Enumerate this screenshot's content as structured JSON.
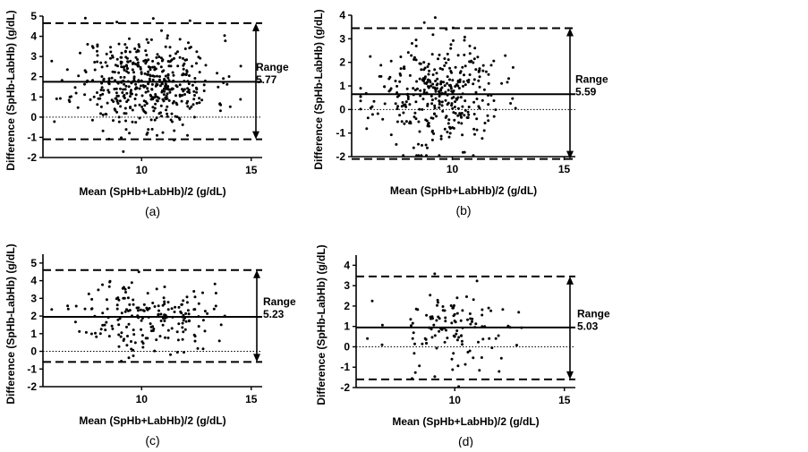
{
  "chart_data": [
    {
      "type": "scatter",
      "panel_label": "(a)",
      "xlabel": "Mean (SpHb+LabHb)/2 (g/dL)",
      "ylabel": "Difference (SpHb-LabHb) (g/dL)",
      "xlim": [
        5.5,
        15.5
      ],
      "ylim": [
        -2,
        5
      ],
      "xticks": [
        10,
        15
      ],
      "yticks": [
        -2,
        -1,
        0,
        1,
        2,
        3,
        4,
        5
      ],
      "mean_line": 1.75,
      "upper_loa": 4.65,
      "lower_loa": -1.1,
      "range_label": "Range",
      "range_value": "5.77",
      "n_points": 480,
      "x_center": 10.2,
      "x_spread": 1.55,
      "y_center": 1.75,
      "y_spread": 1.15,
      "seed": 11
    },
    {
      "type": "scatter",
      "panel_label": "(b)",
      "xlabel": "Mean (SpHb+LabHb)/2 (g/dL)",
      "ylabel": "Difference (SpHb-LabHb) (g/dL)",
      "xlim": [
        5.5,
        15.5
      ],
      "ylim": [
        -2,
        4
      ],
      "xticks": [
        10,
        15
      ],
      "yticks": [
        -2,
        -1,
        0,
        1,
        2,
        3,
        4
      ],
      "mean_line": 0.65,
      "upper_loa": 3.45,
      "lower_loa": -2.1,
      "range_label": "Range",
      "range_value": "5.59",
      "n_points": 360,
      "x_center": 9.3,
      "x_spread": 1.4,
      "y_center": 0.65,
      "y_spread": 1.1,
      "seed": 23
    },
    {
      "type": "scatter",
      "panel_label": "(c)",
      "xlabel": "Mean (SpHb+LabHb)/2 (g/dL)",
      "ylabel": "Difference (SpHb-LabHb) (g/dL)",
      "xlim": [
        5.5,
        15.5
      ],
      "ylim": [
        -2,
        5.5
      ],
      "xticks": [
        10,
        15
      ],
      "yticks": [
        -2,
        -1,
        0,
        1,
        2,
        3,
        4,
        5
      ],
      "mean_line": 1.95,
      "upper_loa": 4.6,
      "lower_loa": -0.6,
      "range_label": "Range",
      "range_value": "5.23",
      "n_points": 200,
      "x_center": 10.2,
      "x_spread": 1.5,
      "y_center": 1.95,
      "y_spread": 1.05,
      "seed": 37
    },
    {
      "type": "scatter",
      "panel_label": "(d)",
      "xlabel": "Mean (SpHb+LabHb)/2 (g/dL)",
      "ylabel": "Difference (SpHb-LabHb) (g/dL)",
      "xlim": [
        5.5,
        15.5
      ],
      "ylim": [
        -2,
        4.5
      ],
      "xticks": [
        10,
        15
      ],
      "yticks": [
        -2,
        -1,
        0,
        1,
        2,
        3,
        4
      ],
      "mean_line": 0.95,
      "upper_loa": 3.45,
      "lower_loa": -1.6,
      "range_label": "Range",
      "range_value": "5.03",
      "n_points": 120,
      "x_center": 10.0,
      "x_spread": 1.5,
      "y_center": 0.95,
      "y_spread": 1.05,
      "seed": 53
    }
  ]
}
